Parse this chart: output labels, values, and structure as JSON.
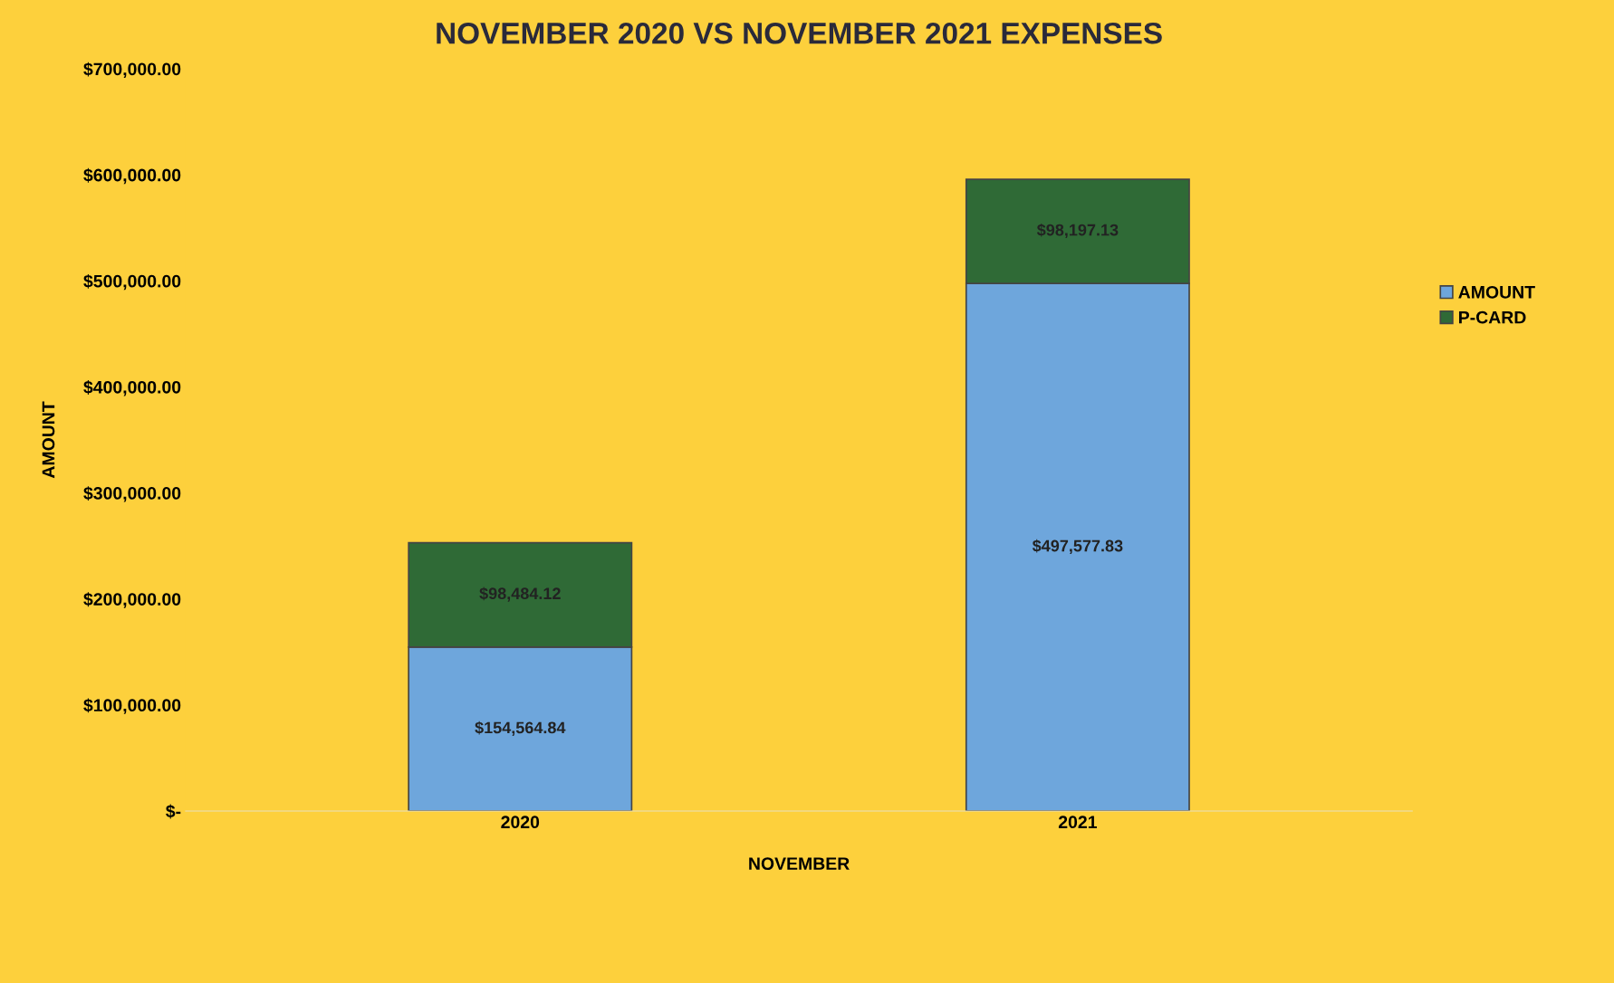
{
  "chart_data": {
    "type": "bar",
    "title": "NOVEMBER 2020 VS NOVEMBER 2021 EXPENSES",
    "xlabel": "NOVEMBER",
    "ylabel": "AMOUNT",
    "categories": [
      "2020",
      "2021"
    ],
    "stacked": true,
    "series": [
      {
        "name": "AMOUNT",
        "color": "#6ea6dc",
        "values": [
          154564.84,
          497577.83
        ],
        "value_labels": [
          "$154,564.84",
          "$497,577.83"
        ]
      },
      {
        "name": "P-CARD",
        "color": "#2f6a36",
        "values": [
          98484.12,
          98197.13
        ],
        "value_labels": [
          "$98,484.12",
          "$98,197.13"
        ]
      }
    ],
    "ylim": [
      0,
      700000
    ],
    "yticks": [
      {
        "value": 0,
        "label": "$-"
      },
      {
        "value": 100000,
        "label": "$100,000.00"
      },
      {
        "value": 200000,
        "label": "$200,000.00"
      },
      {
        "value": 300000,
        "label": "$300,000.00"
      },
      {
        "value": 400000,
        "label": "$400,000.00"
      },
      {
        "value": 500000,
        "label": "$500,000.00"
      },
      {
        "value": 600000,
        "label": "$600,000.00"
      },
      {
        "value": 700000,
        "label": "$700,000.00"
      }
    ],
    "legend": "right",
    "grid": false
  }
}
